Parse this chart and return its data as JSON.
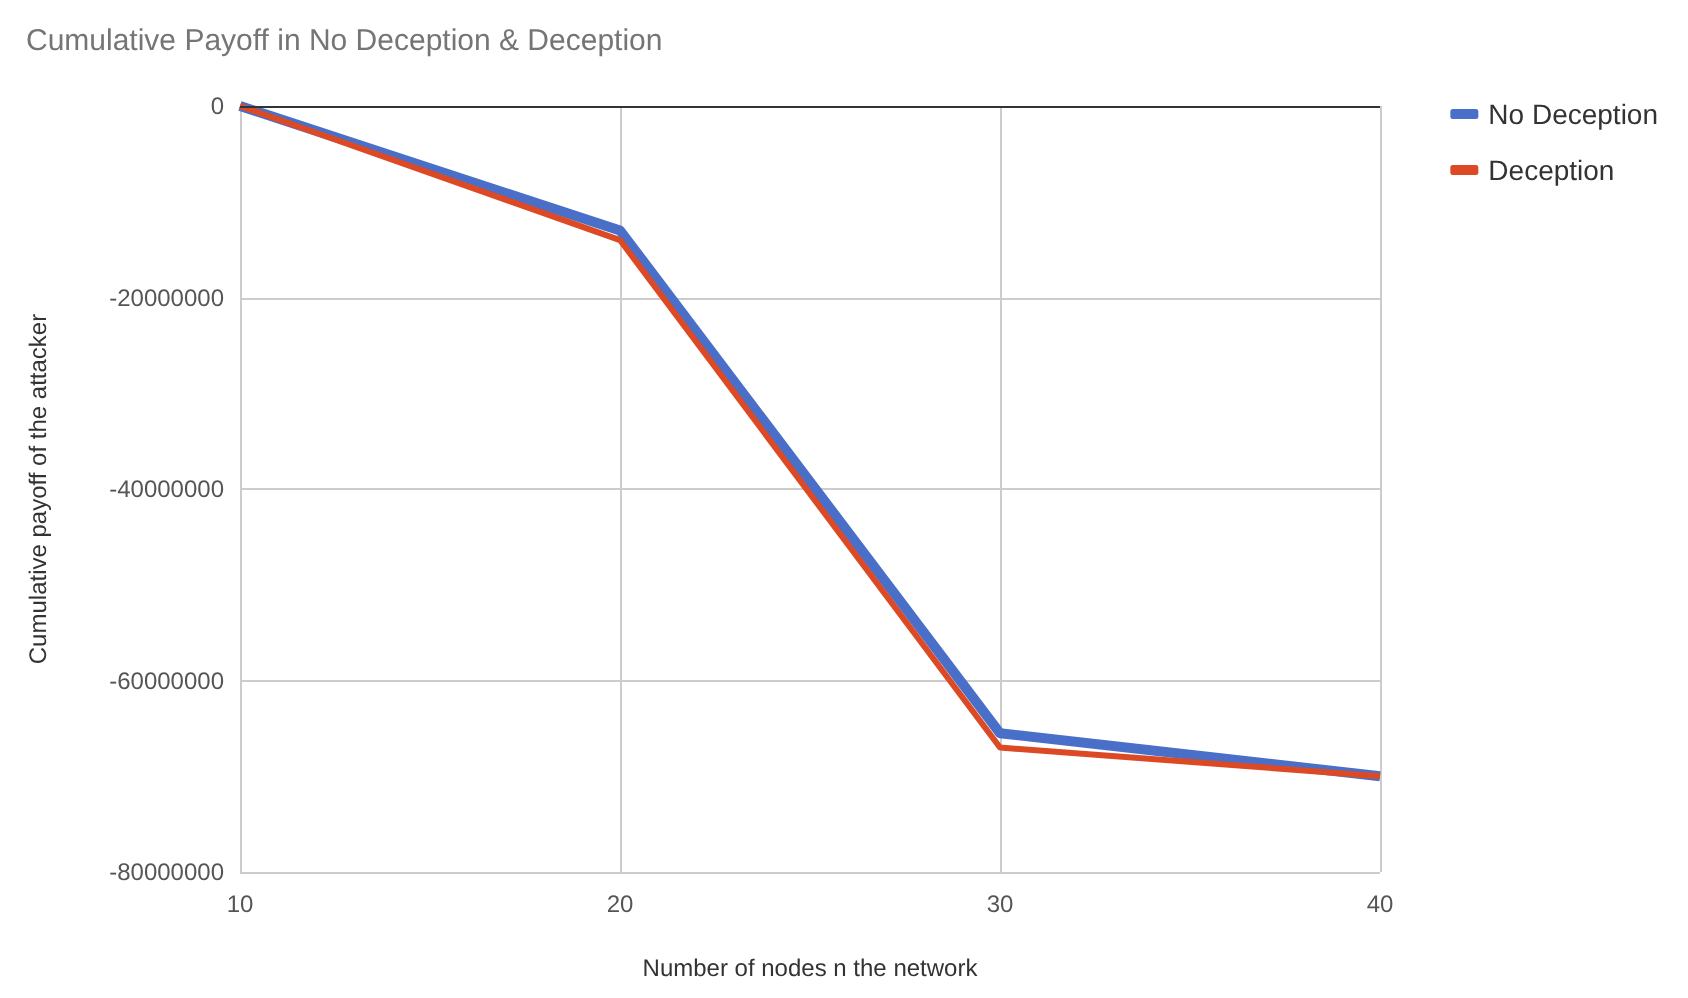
{
  "chart_data": {
    "type": "line",
    "title": "Cumulative Payoff in No Deception & Deception",
    "xlabel": "Number of nodes n the network",
    "ylabel": "Cumulative payoff of the attacker",
    "x": [
      10,
      20,
      30,
      40
    ],
    "series": [
      {
        "name": "No Deception",
        "color": "#4a6fc8",
        "values": [
          0,
          -13000000,
          -65500000,
          -70000000
        ]
      },
      {
        "name": "Deception",
        "color": "#dc4a25",
        "values": [
          0,
          -14000000,
          -67000000,
          -70000000
        ]
      }
    ],
    "xlim": [
      10,
      40
    ],
    "xticks": [
      10,
      20,
      30,
      40
    ],
    "ylim": [
      -80000000,
      0
    ],
    "yticks": [
      -80000000,
      -60000000,
      -40000000,
      -20000000,
      0
    ],
    "grid": true,
    "legend": "top right",
    "marker": "none",
    "line_style": "solid"
  }
}
